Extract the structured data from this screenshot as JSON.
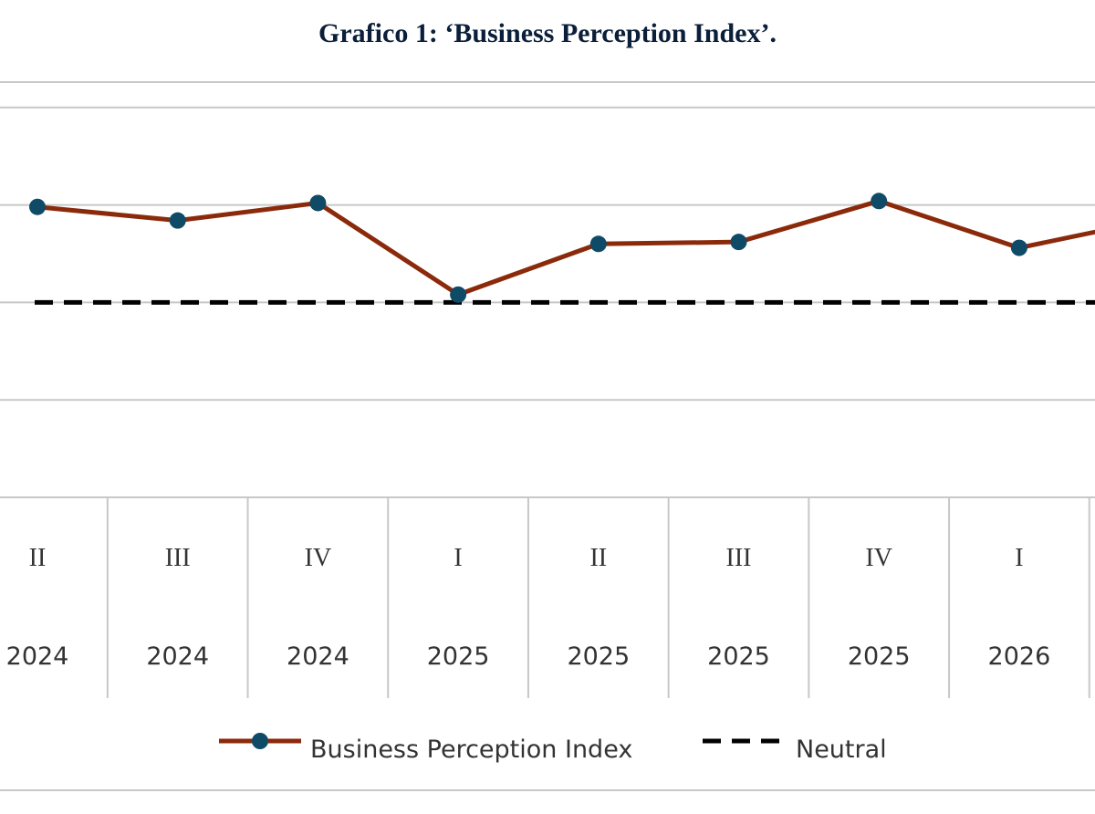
{
  "chart_data": {
    "type": "line",
    "title": "Grafico 1: ‘Business Perception Index’.",
    "categories": [
      {
        "quarter": "II",
        "year": "2024"
      },
      {
        "quarter": "III",
        "year": "2024"
      },
      {
        "quarter": "IV",
        "year": "2024"
      },
      {
        "quarter": "I",
        "year": "2025"
      },
      {
        "quarter": "II",
        "year": "2025"
      },
      {
        "quarter": "III",
        "year": "2025"
      },
      {
        "quarter": "IV",
        "year": "2025"
      },
      {
        "quarter": "I",
        "year": "2026"
      },
      {
        "quarter": "",
        "year": ""
      }
    ],
    "series": [
      {
        "name": "Business Perception Index",
        "color": "#8b2a0b",
        "marker_color": "#0f4a66",
        "values": [
          104.9,
          104.2,
          105.1,
          100.4,
          103.0,
          103.1,
          105.2,
          102.8,
          104.3
        ]
      },
      {
        "name": "Neutral",
        "color": "#000000",
        "dashed": true,
        "values": [
          100,
          100,
          100,
          100,
          100,
          100,
          100,
          100,
          100
        ]
      }
    ],
    "gridlines": [
      95,
      100,
      105,
      110
    ],
    "ylim": [
      90,
      111.3
    ],
    "grid": true,
    "legend": "bottom"
  }
}
